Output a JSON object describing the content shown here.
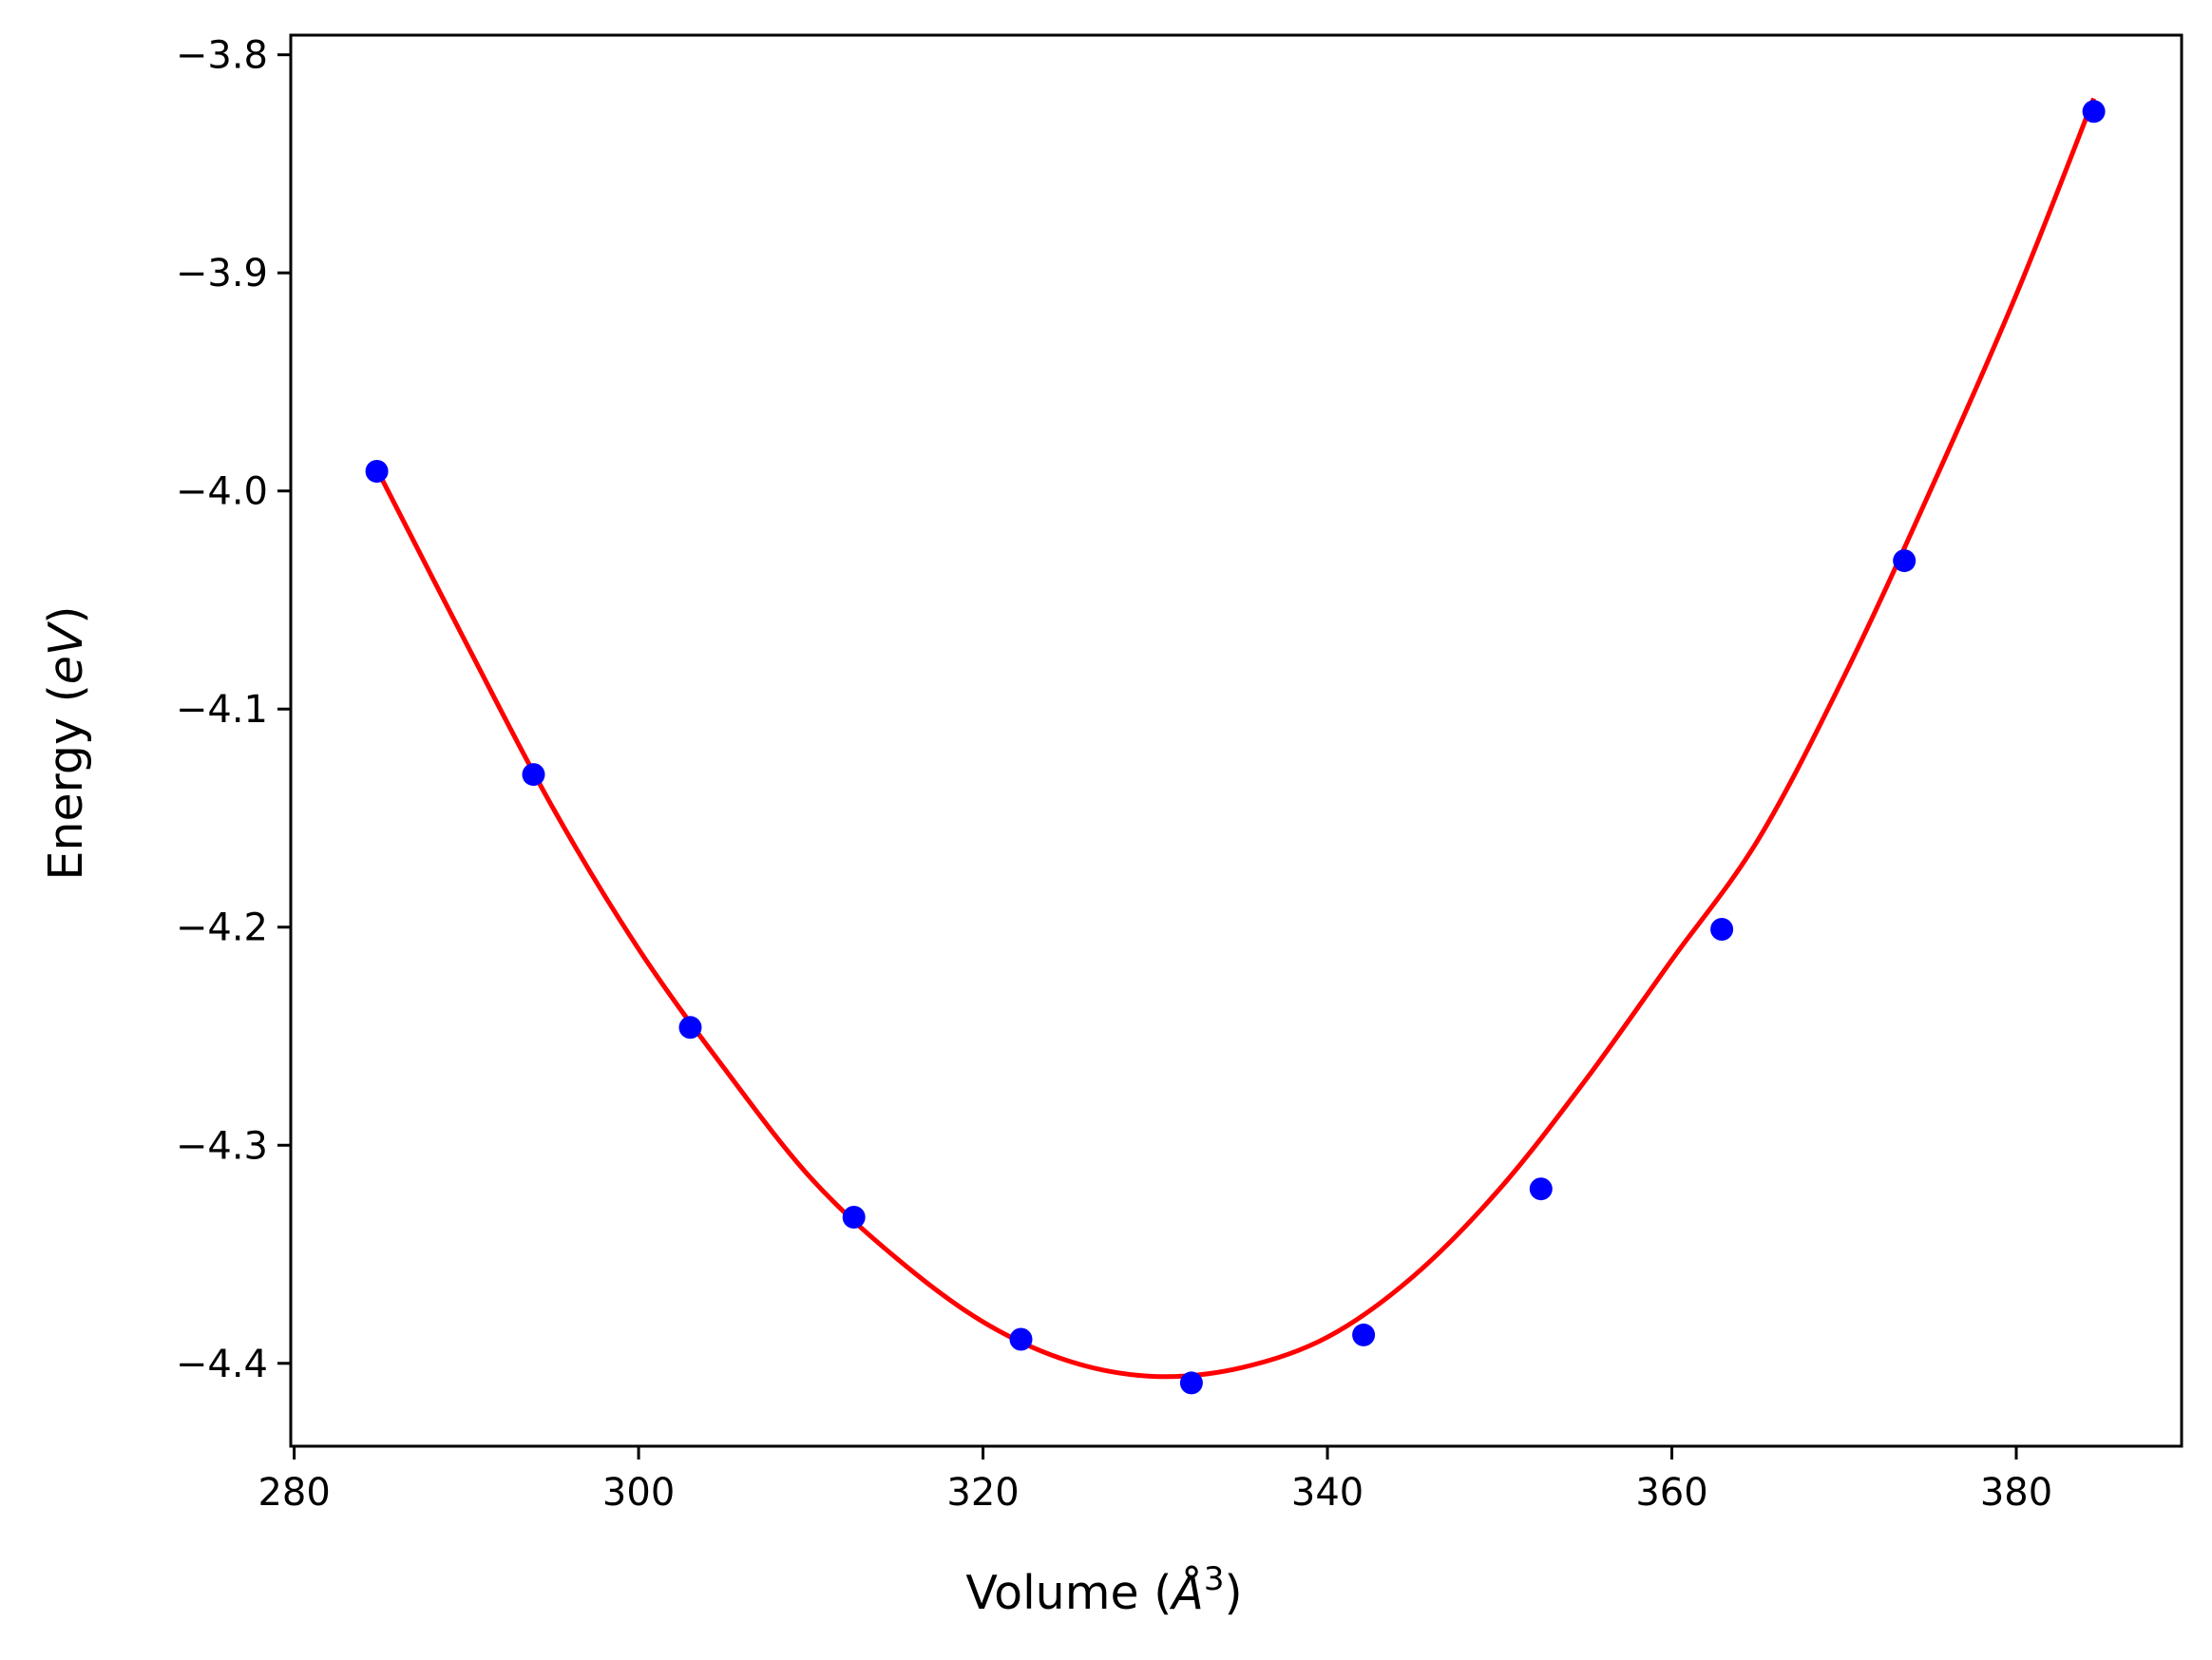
{
  "chart_data": {
    "type": "scatter",
    "xlabel": "Volume (Å³)",
    "xlabel_main": "Volume (",
    "xlabel_unit": "Å",
    "xlabel_exp": "3",
    "xlabel_close": ")",
    "ylabel": "Energy (eV)",
    "ylabel_main": "Energy (",
    "ylabel_unit": "eV",
    "ylabel_close": ")",
    "xlim": [
      279.8,
      389.6
    ],
    "ylim": [
      -4.438,
      -3.791
    ],
    "x_ticks": [
      280,
      300,
      320,
      340,
      360,
      380
    ],
    "x_tick_labels": [
      "280",
      "300",
      "320",
      "340",
      "360",
      "380"
    ],
    "y_ticks": [
      -4.4,
      -4.3,
      -4.2,
      -4.1,
      -4.0,
      -3.9,
      -3.8
    ],
    "y_tick_labels": [
      "−4.4",
      "−4.3",
      "−4.2",
      "−4.1",
      "−4.0",
      "−3.9",
      "−3.8"
    ],
    "grid": false,
    "series": [
      {
        "kind": "points",
        "color": "#0000ff",
        "x": [
          284.8,
          293.9,
          303.0,
          312.5,
          322.2,
          332.1,
          342.1,
          352.4,
          362.9,
          373.5,
          384.5
        ],
        "y": [
          -3.991,
          -4.13,
          -4.246,
          -4.333,
          -4.389,
          -4.409,
          -4.387,
          -4.32,
          -4.201,
          -4.032,
          -3.826
        ]
      },
      {
        "kind": "fit-curve",
        "color": "#ff0000",
        "x": [
          284.8,
          290,
          295,
          300,
          305,
          310,
          315,
          320,
          325,
          330,
          335,
          340,
          345,
          350,
          355,
          360,
          365,
          370,
          375,
          380,
          384.5
        ],
        "y": [
          -3.99,
          -4.07,
          -4.145,
          -4.21,
          -4.265,
          -4.315,
          -4.352,
          -4.381,
          -4.399,
          -4.406,
          -4.402,
          -4.388,
          -4.36,
          -4.32,
          -4.27,
          -4.215,
          -4.16,
          -4.085,
          -4.0,
          -3.91,
          -3.82
        ]
      }
    ]
  }
}
